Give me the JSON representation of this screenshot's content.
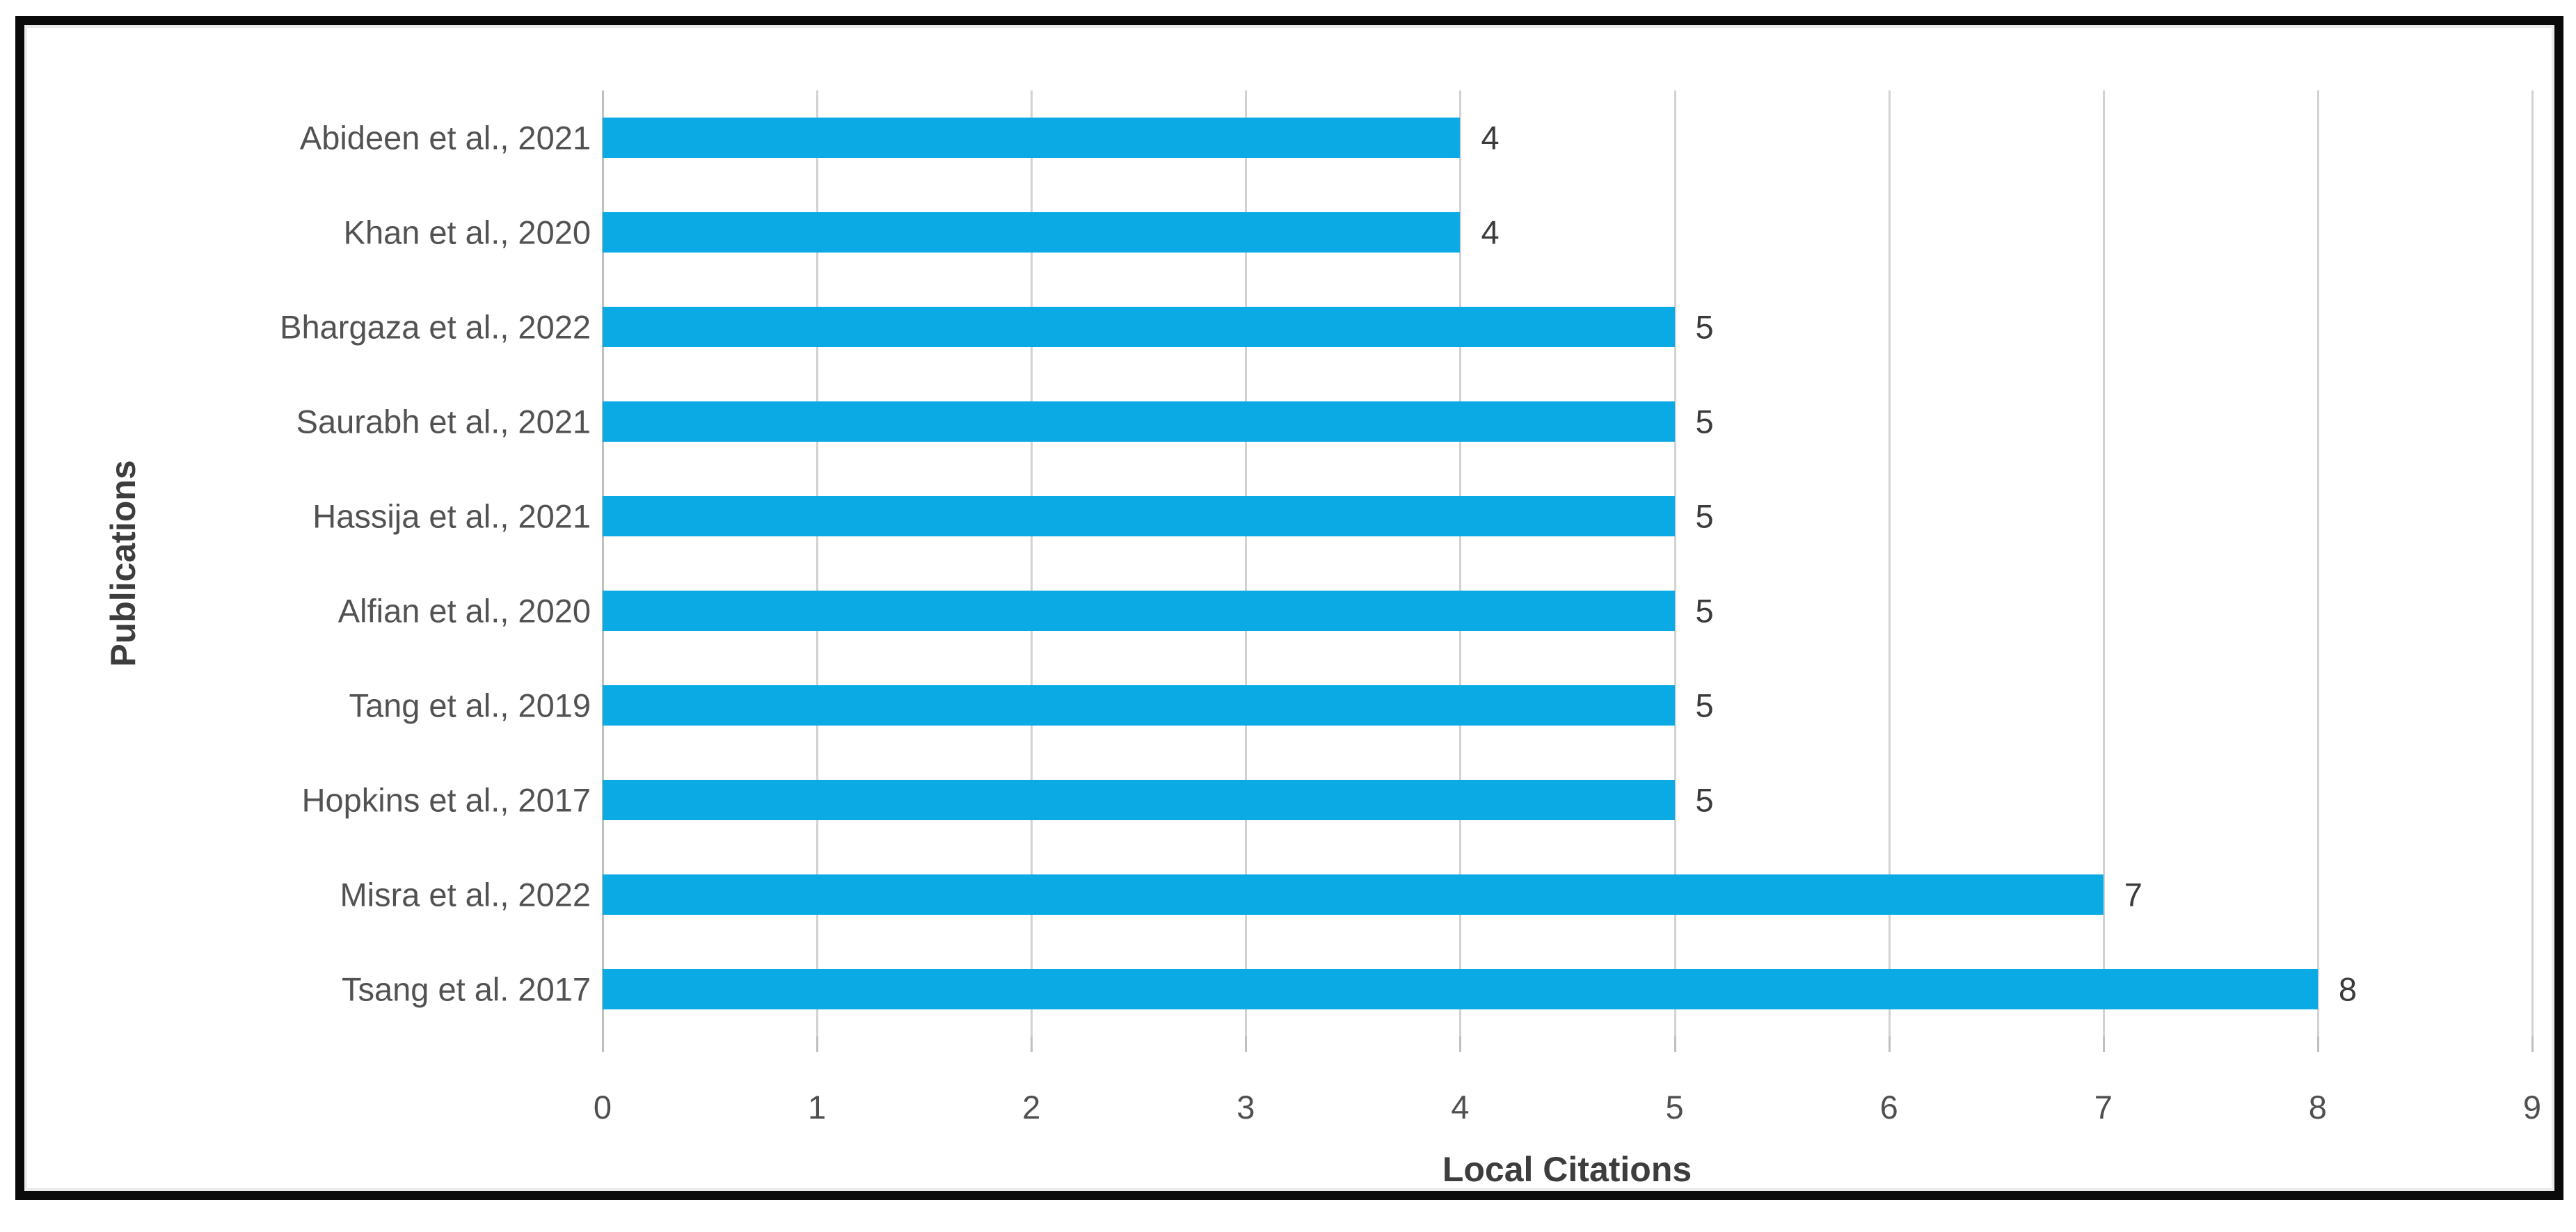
{
  "chart_data": {
    "type": "bar",
    "orientation": "horizontal",
    "title": "",
    "xlabel": "Local Citations",
    "ylabel": "Publications",
    "categories": [
      "Abideen et al., 2021",
      "Khan et al., 2020",
      "Bhargaza et al., 2022",
      "Saurabh et al., 2021",
      "Hassija et al., 2021",
      "Alfian et al., 2020",
      "Tang et al., 2019",
      "Hopkins et al., 2017",
      "Misra et al., 2022",
      "Tsang et al. 2017"
    ],
    "values": [
      4,
      4,
      5,
      5,
      5,
      5,
      5,
      5,
      7,
      8
    ],
    "xlim": [
      0,
      9
    ],
    "xticks": [
      0,
      1,
      2,
      3,
      4,
      5,
      6,
      7,
      8,
      9
    ],
    "grid": "vertical-gridlines-on",
    "legend": "none",
    "data_labels": true,
    "bar_color": "#0caae4",
    "gridline_color": "#d2d2d2",
    "label_color": "#525252",
    "frame_color": "#0a0a0a"
  }
}
